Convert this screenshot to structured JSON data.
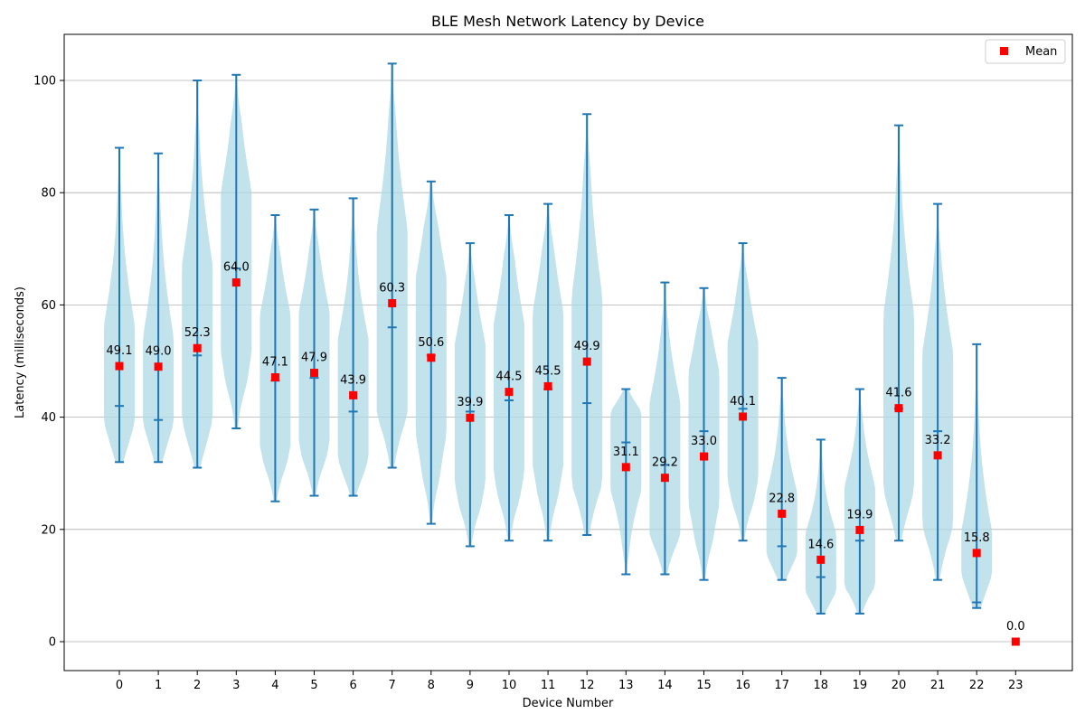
{
  "chart_data": {
    "type": "violin",
    "title": "BLE Mesh Network Latency by Device",
    "xlabel": "Device Number",
    "ylabel": "Latency (milliseconds)",
    "ylim": [
      -5,
      108
    ],
    "yticks": [
      0,
      20,
      40,
      60,
      80,
      100
    ],
    "grid": "horizontal",
    "legend": {
      "position": "top-right",
      "entries": [
        "Mean"
      ]
    },
    "colors": {
      "violin": "#add8e6",
      "whisker": "#1f77b4",
      "mean": "#ff0000",
      "grid": "#b0b0b0"
    },
    "devices": [
      {
        "x": "0",
        "min": 32,
        "max": 88,
        "median": 42,
        "mean": 49.1,
        "mean_label": "49.1"
      },
      {
        "x": "1",
        "min": 32,
        "max": 87,
        "median": 39.5,
        "mean": 49.0,
        "mean_label": "49.0"
      },
      {
        "x": "2",
        "min": 31,
        "max": 100,
        "median": 51,
        "mean": 52.3,
        "mean_label": "52.3"
      },
      {
        "x": "3",
        "min": 38,
        "max": 101,
        "median": 66.5,
        "mean": 64.0,
        "mean_label": "64.0"
      },
      {
        "x": "4",
        "min": 25,
        "max": 76,
        "median": 46.5,
        "mean": 47.1,
        "mean_label": "47.1"
      },
      {
        "x": "5",
        "min": 26,
        "max": 77,
        "median": 47,
        "mean": 47.9,
        "mean_label": "47.9"
      },
      {
        "x": "6",
        "min": 26,
        "max": 79,
        "median": 41,
        "mean": 43.9,
        "mean_label": "43.9"
      },
      {
        "x": "7",
        "min": 31,
        "max": 103,
        "median": 56,
        "mean": 60.3,
        "mean_label": "60.3"
      },
      {
        "x": "8",
        "min": 21,
        "max": 82,
        "median": 51,
        "mean": 50.6,
        "mean_label": "50.6"
      },
      {
        "x": "9",
        "min": 17,
        "max": 71,
        "median": 41,
        "mean": 39.9,
        "mean_label": "39.9"
      },
      {
        "x": "10",
        "min": 18,
        "max": 76,
        "median": 43,
        "mean": 44.5,
        "mean_label": "44.5"
      },
      {
        "x": "11",
        "min": 18,
        "max": 78,
        "median": 45,
        "mean": 45.5,
        "mean_label": "45.5"
      },
      {
        "x": "12",
        "min": 19,
        "max": 94,
        "median": 42.5,
        "mean": 49.9,
        "mean_label": "49.9"
      },
      {
        "x": "13",
        "min": 12,
        "max": 45,
        "median": 35.5,
        "mean": 31.1,
        "mean_label": "31.1"
      },
      {
        "x": "14",
        "min": 12,
        "max": 64,
        "median": 31.5,
        "mean": 29.2,
        "mean_label": "29.2"
      },
      {
        "x": "15",
        "min": 11,
        "max": 63,
        "median": 37.5,
        "mean": 33.0,
        "mean_label": "33.0"
      },
      {
        "x": "16",
        "min": 18,
        "max": 71,
        "median": 41.5,
        "mean": 40.1,
        "mean_label": "40.1"
      },
      {
        "x": "17",
        "min": 11,
        "max": 47,
        "median": 17,
        "mean": 22.8,
        "mean_label": "22.8"
      },
      {
        "x": "18",
        "min": 5,
        "max": 36,
        "median": 11.5,
        "mean": 14.6,
        "mean_label": "14.6"
      },
      {
        "x": "19",
        "min": 5,
        "max": 45,
        "median": 18,
        "mean": 19.9,
        "mean_label": "19.9"
      },
      {
        "x": "20",
        "min": 18,
        "max": 92,
        "median": 41.5,
        "mean": 41.6,
        "mean_label": "41.6"
      },
      {
        "x": "21",
        "min": 11,
        "max": 78,
        "median": 37.5,
        "mean": 33.2,
        "mean_label": "33.2"
      },
      {
        "x": "22",
        "min": 6,
        "max": 53,
        "median": 7,
        "mean": 15.8,
        "mean_label": "15.8"
      },
      {
        "x": "23",
        "min": 0,
        "max": 0,
        "median": 0,
        "mean": 0.0,
        "mean_label": "0.0"
      }
    ]
  }
}
